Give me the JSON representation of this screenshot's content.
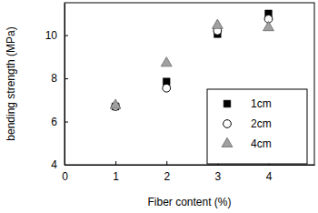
{
  "chart_data": {
    "type": "scatter",
    "x_label": "Fiber content (%)",
    "y_label": "bending strength (MPa)",
    "xlim": [
      0,
      4.9
    ],
    "xticks": [
      0,
      1,
      2,
      3,
      4
    ],
    "ylim": [
      4,
      11.5
    ],
    "yticks": [
      4,
      6,
      8,
      10
    ],
    "grid": false,
    "legend": "lower right",
    "series": [
      {
        "name": "1cm",
        "color": "#000000",
        "marker": "square",
        "x": [
          1,
          2,
          3,
          4
        ],
        "values": [
          6.7,
          7.85,
          10.05,
          11.0
        ]
      },
      {
        "name": "2cm",
        "color": "#000000",
        "marker": "circle-open",
        "x": [
          1,
          2,
          3,
          4
        ],
        "values": [
          6.7,
          7.55,
          10.2,
          10.75
        ]
      },
      {
        "name": "4cm",
        "color": "#a0a0a0",
        "marker": "triangle",
        "x": [
          1,
          2,
          3,
          4
        ],
        "values": [
          6.75,
          8.7,
          10.45,
          10.35
        ]
      }
    ]
  }
}
